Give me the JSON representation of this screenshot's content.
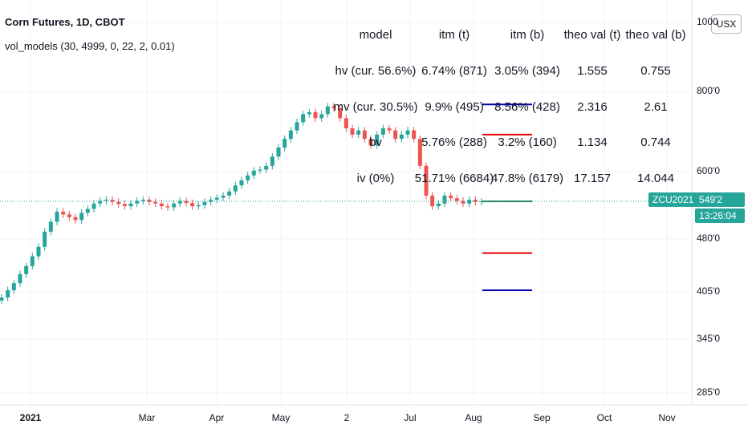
{
  "header": {
    "symbol_title": "Corn Futures, 1D, CBOT",
    "indicator_title": "vol_models (30, 4999, 0, 22, 2, 0.01)"
  },
  "table": {
    "headers": [
      "model",
      "itm (t)",
      "itm (b)",
      "theo val (t)",
      "theo val (b)"
    ],
    "rows": [
      [
        "hv (cur. 56.6%)",
        "6.74% (871)",
        "3.05% (394)",
        "1.555",
        "0.755"
      ],
      [
        "mv (cur. 30.5%)",
        "9.9% (495)",
        "8.56% (428)",
        "2.316",
        "2.61"
      ],
      [
        "bv",
        "5.76% (288)",
        "3.2% (160)",
        "1.134",
        "0.744"
      ],
      [
        "iv (0%)",
        "51.71% (6684)",
        "47.8% (6179)",
        "17.157",
        "14.044"
      ]
    ]
  },
  "price_axis": {
    "labels": [
      "1000",
      "800'0",
      "600'0",
      "480'0",
      "405'0",
      "345'0",
      "285'0"
    ],
    "currency": "USX",
    "symbol_tag": "ZCU2021",
    "last_price": "549'2",
    "countdown": "13:26:04"
  },
  "time_axis": {
    "labels": [
      "2021",
      "Mar",
      "Apr",
      "May",
      "2",
      "Jul",
      "Aug",
      "Sep",
      "Oct",
      "Nov"
    ]
  },
  "colors": {
    "up": "#26a69a",
    "down": "#ef5350",
    "last_price_line": "#26a69a",
    "band_blue": "#0000b3",
    "band_red": "#e60000",
    "band_green": "#2e7d5b"
  },
  "chart_data": {
    "type": "candlestick",
    "y_scale": "log",
    "series": [
      {
        "name": "",
        "description": "daily OHLC closes (approx, USX)",
        "values": [
          395,
          405,
          415,
          428,
          440,
          455,
          470,
          495,
          512,
          530,
          525,
          520,
          515,
          528,
          535,
          545,
          550,
          552,
          548,
          544,
          540,
          545,
          550,
          552,
          548,
          545,
          540,
          538,
          545,
          550,
          546,
          540,
          542,
          548,
          552,
          556,
          560,
          568,
          580,
          590,
          600,
          610,
          612,
          620,
          640,
          660,
          680,
          700,
          720,
          740,
          745,
          730,
          740,
          760,
          755,
          730,
          705,
          690,
          700,
          680,
          665,
          690,
          705,
          700,
          680,
          690,
          700,
          680,
          620,
          560,
          540,
          545,
          560,
          555,
          550,
          545,
          552,
          548,
          549
        ]
      }
    ],
    "horizontal_levels": [
      {
        "color": "blue",
        "value": 765
      },
      {
        "color": "red",
        "value": 690
      },
      {
        "color": "green",
        "value": 549
      },
      {
        "color": "red",
        "value": 460
      },
      {
        "color": "blue",
        "value": 405
      }
    ],
    "last_price": 549.25
  }
}
